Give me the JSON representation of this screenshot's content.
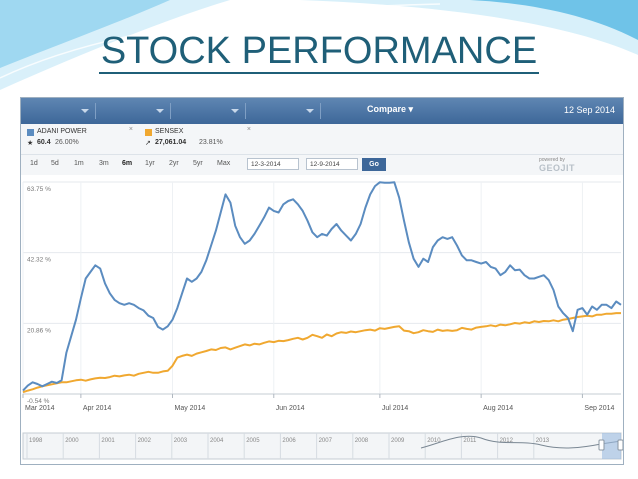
{
  "slide": {
    "title": "STOCK PERFORMANCE"
  },
  "toolbar": {
    "compare_label": "Compare ▾",
    "date": "12 Sep 2014"
  },
  "legend": [
    {
      "name": "ADANI POWER",
      "value": "60.4",
      "change": "26.00%",
      "color": "#5b8cc0"
    },
    {
      "name": "SENSEX",
      "value": "27,061.04",
      "change": "23.81%",
      "color": "#f0a830"
    }
  ],
  "periods": [
    "1d",
    "5d",
    "1m",
    "3m",
    "6m",
    "1yr",
    "2yr",
    "5yr",
    "Max"
  ],
  "active_period": "6m",
  "date_from": "12-3-2014",
  "date_to": "12-9-2014",
  "go_label": "Go",
  "powered_by": "powered by",
  "brand": "GEOJIT",
  "chart_data": {
    "type": "line",
    "title": "",
    "ytick_labels": [
      "63.75 %",
      "42.32 %",
      "20.86 %",
      "-0.54 %"
    ],
    "ytick_values": [
      63.75,
      42.32,
      20.86,
      -0.54
    ],
    "xtick_labels": [
      "Mar 2014",
      "Apr 2014",
      "May 2014",
      "Jun 2014",
      "Jul 2014",
      "Aug 2014",
      "Sep 2014"
    ],
    "xtick_index": [
      0,
      12,
      31,
      52,
      74,
      95,
      116
    ],
    "ylim": [
      -0.54,
      63.75
    ],
    "grid": true,
    "series": [
      {
        "name": "ADANI POWER",
        "color": "#5b8cc0",
        "values": [
          0.5,
          2.0,
          3.0,
          2.5,
          1.8,
          2.5,
          3.2,
          2.8,
          3.6,
          12,
          17,
          22,
          28.5,
          34.5,
          36.5,
          38.5,
          37.5,
          33.0,
          30.0,
          28.0,
          27.0,
          26.5,
          27.0,
          26.5,
          25.5,
          24.8,
          23.2,
          22.5,
          19.8,
          19.0,
          20.0,
          22.0,
          25.5,
          30.0,
          34.5,
          33.5,
          34.5,
          36.5,
          40.0,
          44.5,
          49.0,
          54.5,
          60.0,
          57.5,
          50.5,
          47.0,
          45.0,
          46.0,
          48.0,
          50.5,
          53.0,
          56.0,
          55.0,
          54.5,
          57.0,
          58.0,
          58.5,
          57.0,
          55.0,
          52.0,
          48.5,
          47.0,
          48.0,
          47.5,
          49.5,
          51.0,
          49.0,
          47.5,
          46.0,
          48.0,
          51.0,
          56.0,
          60.0,
          62.5,
          63.7,
          63.5,
          63.5,
          63.7,
          59.0,
          52.0,
          45.5,
          40.5,
          38.0,
          40.5,
          39.5,
          44.0,
          46.0,
          47.0,
          46.5,
          47.0,
          44.5,
          41.5,
          40.0,
          40.0,
          39.5,
          39.0,
          39.5,
          38.0,
          37.5,
          35.5,
          36.5,
          38.5,
          37.0,
          37.2,
          35.5,
          34.5,
          34.5,
          35.0,
          35.5,
          34.0,
          31.0,
          26.0,
          24.0,
          22.5,
          18.5,
          25.0,
          25.5,
          23.5,
          26.0,
          25.0,
          26.5,
          26.5,
          25.5,
          27.5,
          26.5
        ]
      },
      {
        "name": "SENSEX",
        "color": "#f0a830",
        "values": [
          0.0,
          0.5,
          0.9,
          1.4,
          1.8,
          2.1,
          2.4,
          2.7,
          3.0,
          3.0,
          3.3,
          3.6,
          3.8,
          3.5,
          3.9,
          4.2,
          4.4,
          4.3,
          4.6,
          5.0,
          4.8,
          5.1,
          5.3,
          5.0,
          5.6,
          5.9,
          6.2,
          5.9,
          5.9,
          6.3,
          6.5,
          8.0,
          10.5,
          11.0,
          11.4,
          11.0,
          11.7,
          12.1,
          12.5,
          13.0,
          12.8,
          13.4,
          13.6,
          13.0,
          13.5,
          14.0,
          14.5,
          14.2,
          14.7,
          14.5,
          15.0,
          15.4,
          15.2,
          15.6,
          15.5,
          15.8,
          16.2,
          16.5,
          16.0,
          16.5,
          17.4,
          17.0,
          16.5,
          17.5,
          17.0,
          17.8,
          18.2,
          18.0,
          18.4,
          18.2,
          18.5,
          18.8,
          19.0,
          18.7,
          19.4,
          19.2,
          19.5,
          19.8,
          20.0,
          18.7,
          18.5,
          17.9,
          18.2,
          18.8,
          18.5,
          18.3,
          19.0,
          18.6,
          18.8,
          18.6,
          18.8,
          19.5,
          19.2,
          19.0,
          19.6,
          19.8,
          20.0,
          20.3,
          20.0,
          20.5,
          20.3,
          20.6,
          21.0,
          20.8,
          21.2,
          21.0,
          21.5,
          21.3,
          21.6,
          21.5,
          21.8,
          21.5,
          22.0,
          22.2,
          22.5,
          22.8,
          23.0,
          23.2,
          23.0,
          23.5,
          23.5,
          23.8,
          23.8,
          24.0,
          24.0
        ]
      }
    ],
    "navigator": {
      "labels": [
        "1998",
        "2000",
        "2001",
        "2002",
        "2003",
        "2004",
        "2005",
        "2006",
        "2007",
        "2008",
        "2009",
        "2010",
        "2011",
        "2012",
        "2013"
      ]
    }
  }
}
